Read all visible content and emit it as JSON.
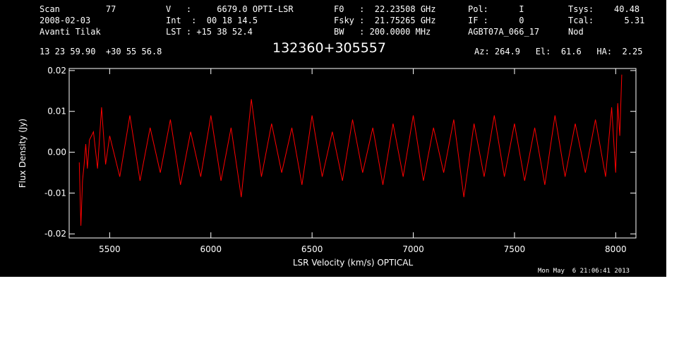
{
  "header": {
    "col1": [
      "Scan         77",
      "2008-02-03",
      "Avanti Tilak"
    ],
    "col2": [
      "V   :     6679.0 OPTI-LSR",
      "Int  :  00 18 14.5",
      "LST : +15 38 52.4"
    ],
    "col3": [
      "F0   :  22.23508 GHz",
      "Fsky :  21.75265 GHz",
      "BW   : 200.0000 MHz"
    ],
    "col4": [
      "Pol:      I",
      "IF :      0",
      "AGBT07A_066_17"
    ],
    "col5": [
      "Tsys:    40.48",
      "Tcal:      5.31",
      "Nod"
    ],
    "coords": "13 23 59.90  +30 55 56.8",
    "source": "132360+305557",
    "azelha": "Az: 264.9   El:  61.6   HA:  2.25",
    "timestamp": "Mon May  6 21:06:41 2013"
  },
  "chart_data": {
    "type": "line",
    "xlabel": "LSR Velocity (km/s) OPTICAL",
    "ylabel": "Flux Density (Jy)",
    "xlim": [
      5300,
      8100
    ],
    "ylim": [
      -0.021,
      0.0205
    ],
    "xticks": [
      5500,
      6000,
      6500,
      7000,
      7500,
      8000
    ],
    "xtick_labels": [
      "5500",
      "6000",
      "6500",
      "7000",
      "7500",
      "8000"
    ],
    "yticks": [
      -0.02,
      -0.01,
      0.0,
      0.01,
      0.02
    ],
    "ytick_labels": [
      "-0.02",
      "-0.01",
      "0.00",
      "0.01",
      "0.02"
    ],
    "line_color": "#ff0000",
    "grid": false,
    "series": [
      {
        "x": [
          5350,
          5358,
          5366,
          5374,
          5382,
          5390,
          5400,
          5420,
          5440,
          5460,
          5480,
          5500,
          5550,
          5600,
          5650,
          5700,
          5750,
          5800,
          5850,
          5900,
          5950,
          6000,
          6050,
          6100,
          6150,
          6200,
          6250,
          6300,
          6350,
          6400,
          6450,
          6500,
          6550,
          6600,
          6650,
          6700,
          6750,
          6800,
          6850,
          6900,
          6950,
          7000,
          7050,
          7100,
          7150,
          7200,
          7250,
          7300,
          7350,
          7400,
          7450,
          7500,
          7550,
          7600,
          7650,
          7700,
          7750,
          7800,
          7850,
          7900,
          7950,
          7980,
          8000,
          8010,
          8020,
          8030
        ],
        "y": [
          -0.0025,
          -0.018,
          -0.007,
          -0.003,
          0.002,
          -0.004,
          0.003,
          0.005,
          -0.004,
          0.011,
          -0.003,
          0.004,
          -0.006,
          0.009,
          -0.007,
          0.006,
          -0.005,
          0.008,
          -0.008,
          0.005,
          -0.006,
          0.009,
          -0.007,
          0.006,
          -0.011,
          0.013,
          -0.006,
          0.007,
          -0.005,
          0.006,
          -0.008,
          0.009,
          -0.006,
          0.005,
          -0.007,
          0.008,
          -0.005,
          0.006,
          -0.008,
          0.007,
          -0.006,
          0.009,
          -0.007,
          0.006,
          -0.005,
          0.008,
          -0.011,
          0.007,
          -0.006,
          0.009,
          -0.006,
          0.007,
          -0.007,
          0.006,
          -0.008,
          0.009,
          -0.006,
          0.007,
          -0.005,
          0.008,
          -0.006,
          0.011,
          -0.005,
          0.012,
          0.004,
          0.019
        ]
      }
    ]
  }
}
